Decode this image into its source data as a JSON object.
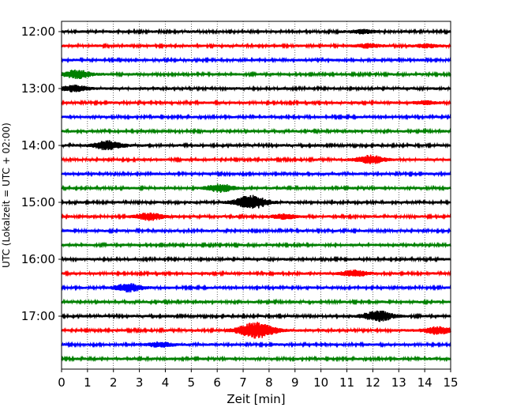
{
  "chart_data": {
    "type": "line",
    "title": "",
    "xlabel": "Zeit  [min]",
    "ylabel": "UTC (Lokalzeit = UTC + 02:00)",
    "xlim": [
      0,
      15
    ],
    "x_ticks": [
      0,
      1,
      2,
      3,
      4,
      5,
      6,
      7,
      8,
      9,
      10,
      11,
      12,
      13,
      14,
      15
    ],
    "grid": "vertical dotted",
    "row_minutes": 15,
    "hour_labels": [
      "12:00",
      "13:00",
      "14:00",
      "15:00",
      "16:00",
      "17:00"
    ],
    "colors": [
      "#000000",
      "#ff0000",
      "#0000ff",
      "#008000"
    ],
    "trace_start_times": [
      "12:00",
      "12:15",
      "12:30",
      "12:45",
      "13:00",
      "13:15",
      "13:30",
      "13:45",
      "14:00",
      "14:15",
      "14:30",
      "14:45",
      "15:00",
      "15:15",
      "15:30",
      "15:45",
      "16:00",
      "16:15",
      "16:30",
      "16:45",
      "17:00",
      "17:15",
      "17:30",
      "17:45"
    ],
    "events": [
      {
        "trace": "12:00",
        "minute": 11.6,
        "amplitude": 0.35
      },
      {
        "trace": "12:15",
        "minute": 11.8,
        "amplitude": 0.35
      },
      {
        "trace": "12:15",
        "minute": 14.1,
        "amplitude": 0.3
      },
      {
        "trace": "12:45",
        "minute": 0.6,
        "amplitude": 0.8
      },
      {
        "trace": "13:00",
        "minute": 0.5,
        "amplitude": 0.6
      },
      {
        "trace": "13:15",
        "minute": 14.0,
        "amplitude": 0.3
      },
      {
        "trace": "14:00",
        "minute": 1.8,
        "amplitude": 0.9
      },
      {
        "trace": "14:15",
        "minute": 11.9,
        "amplitude": 0.8
      },
      {
        "trace": "14:45",
        "minute": 6.1,
        "amplitude": 0.75
      },
      {
        "trace": "15:00",
        "minute": 7.3,
        "amplitude": 1.3
      },
      {
        "trace": "15:15",
        "minute": 3.4,
        "amplitude": 0.7
      },
      {
        "trace": "15:15",
        "minute": 8.6,
        "amplitude": 0.4
      },
      {
        "trace": "16:15",
        "minute": 11.3,
        "amplitude": 0.6
      },
      {
        "trace": "16:30",
        "minute": 2.6,
        "amplitude": 0.75
      },
      {
        "trace": "17:00",
        "minute": 12.2,
        "amplitude": 1.0
      },
      {
        "trace": "17:15",
        "minute": 7.5,
        "amplitude": 1.6
      },
      {
        "trace": "17:15",
        "minute": 14.5,
        "amplitude": 0.7
      },
      {
        "trace": "17:30",
        "minute": 3.8,
        "amplitude": 0.45
      }
    ]
  }
}
